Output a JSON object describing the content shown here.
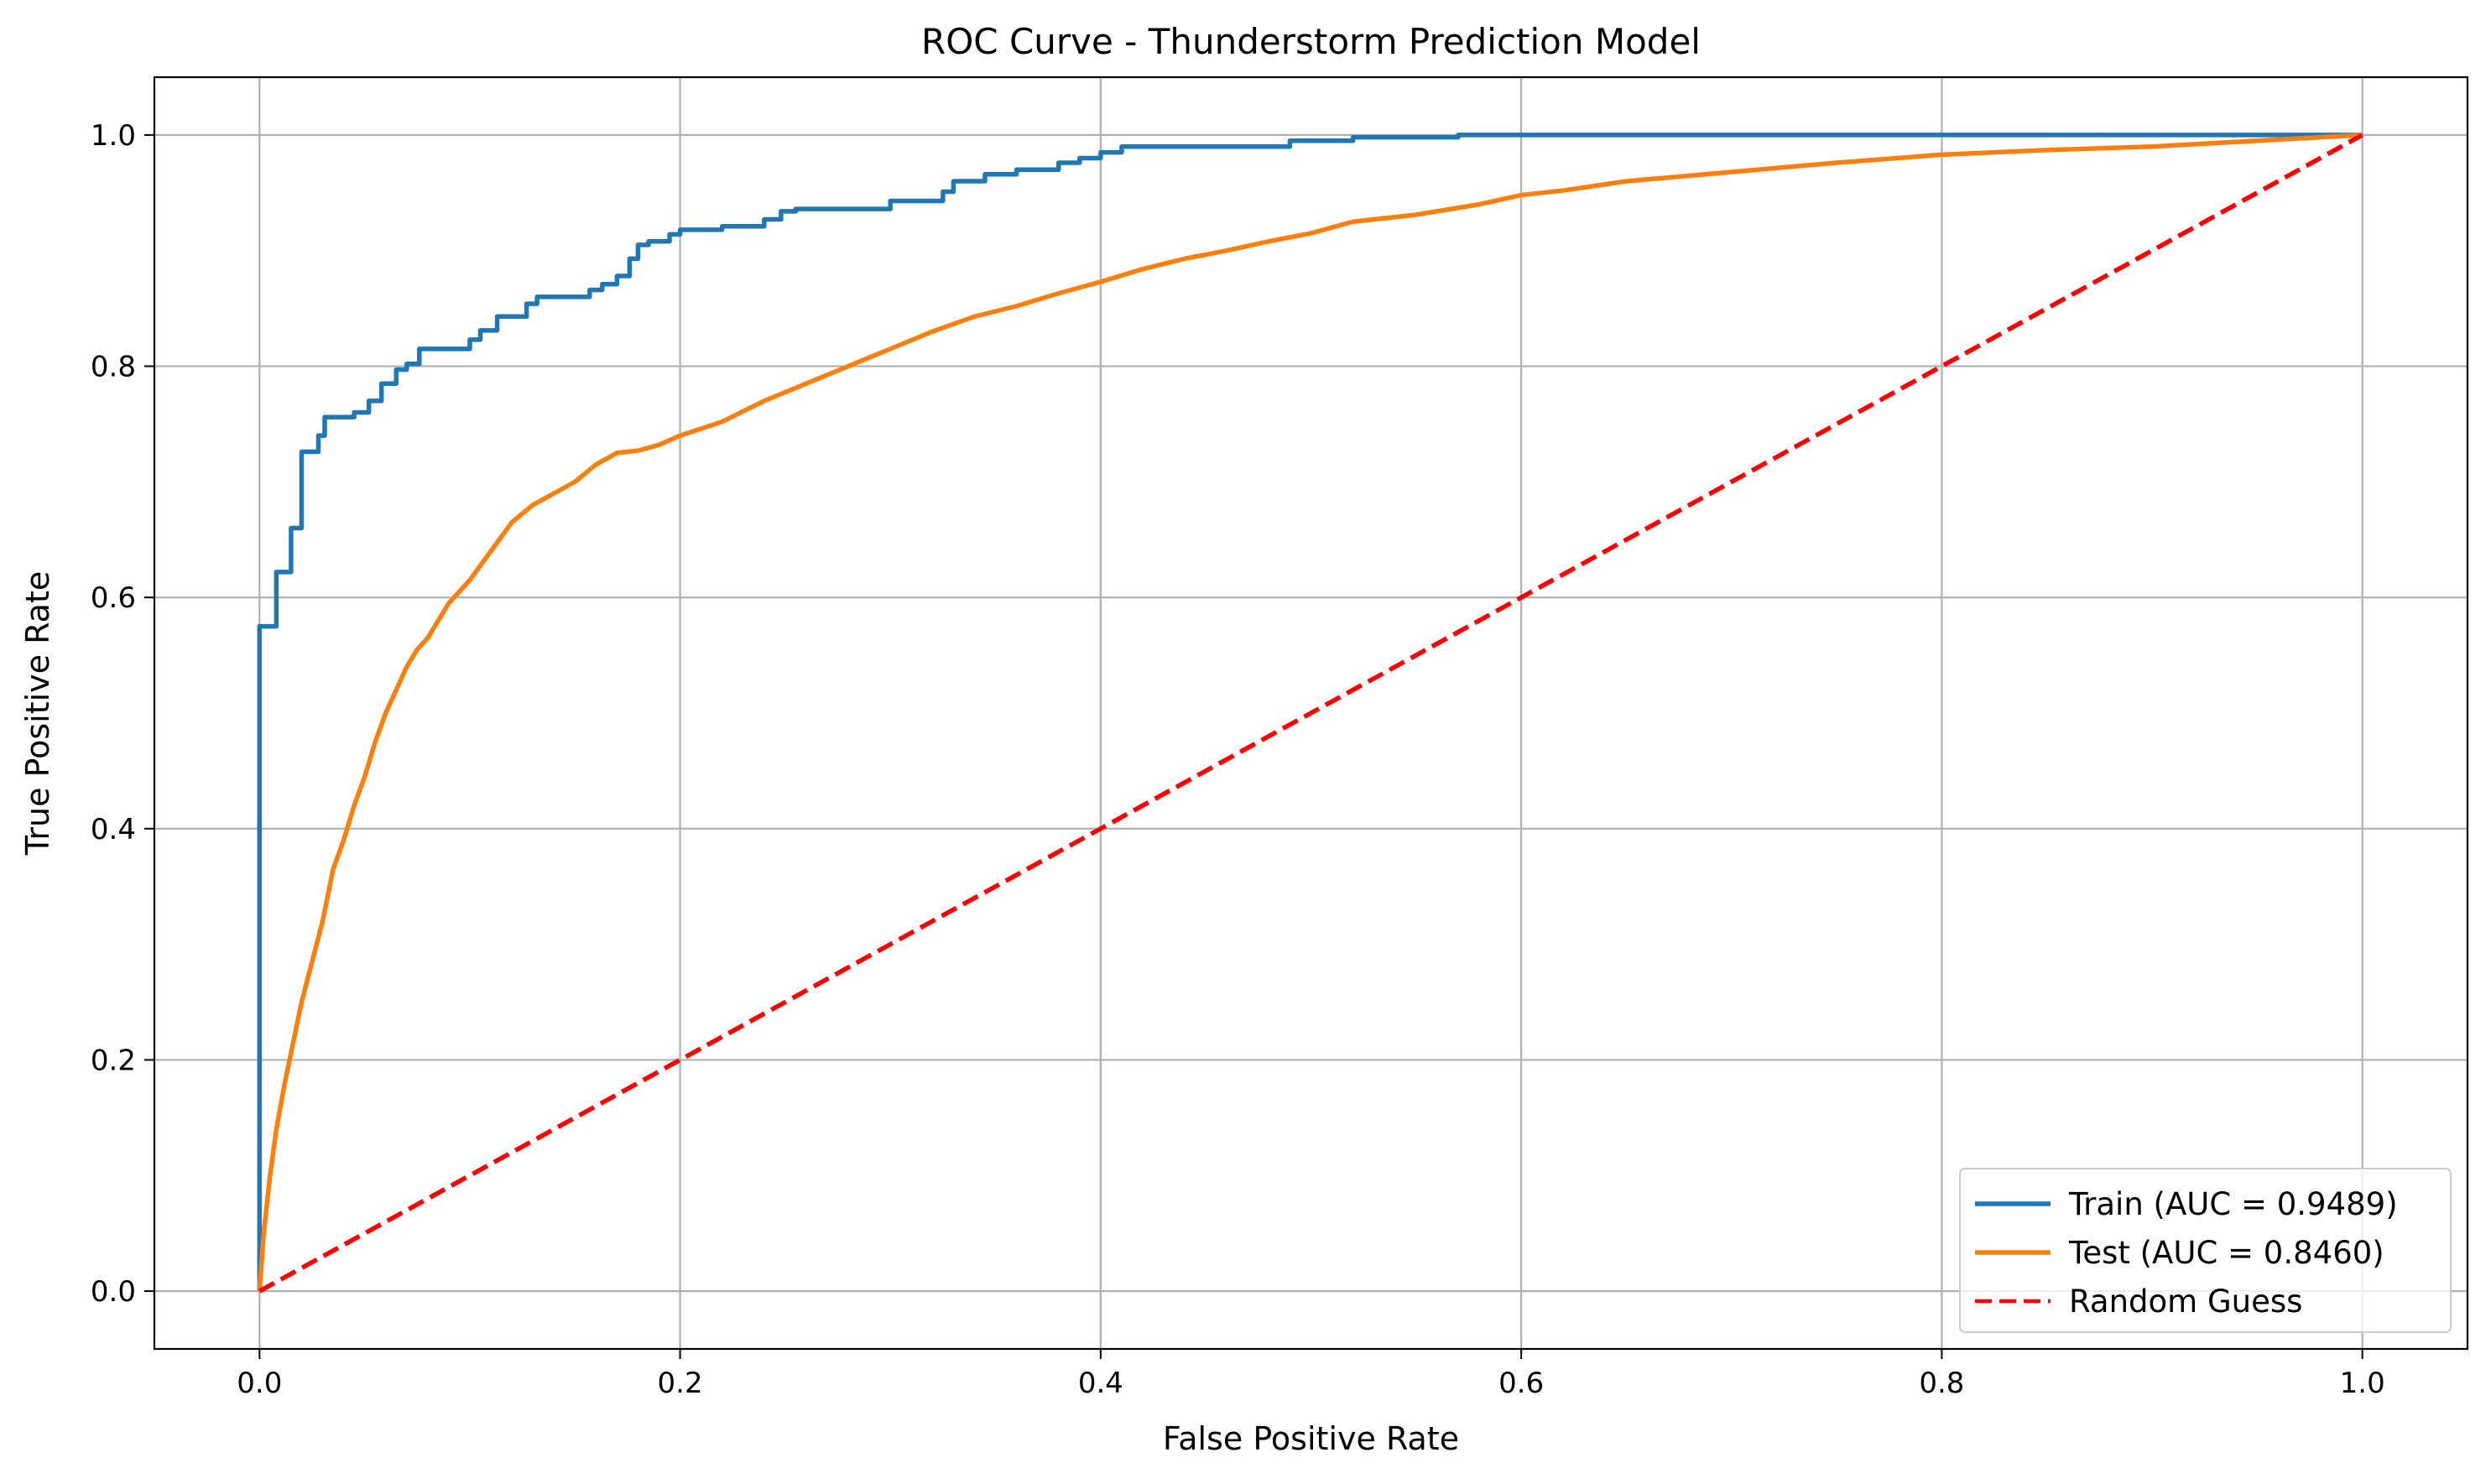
{
  "chart_data": {
    "type": "line",
    "title": "ROC Curve - Thunderstorm Prediction Model",
    "xlabel": "False Positive Rate",
    "ylabel": "True Positive Rate",
    "xlim": [
      -0.05,
      1.05
    ],
    "ylim": [
      -0.05,
      1.05
    ],
    "x_ticks": [
      0.0,
      0.2,
      0.4,
      0.6,
      0.8,
      1.0
    ],
    "x_tick_labels": [
      "0.0",
      "0.2",
      "0.4",
      "0.6",
      "0.8",
      "1.0"
    ],
    "y_ticks": [
      0.0,
      0.2,
      0.4,
      0.6,
      0.8,
      1.0
    ],
    "y_tick_labels": [
      "0.0",
      "0.2",
      "0.4",
      "0.6",
      "0.8",
      "1.0"
    ],
    "grid": true,
    "legend_position": "bottom-right",
    "series": [
      {
        "name": "Train (AUC = 0.9489)",
        "color": "#1f77b4",
        "dash": "solid",
        "x": [
          0.0,
          0.0,
          0.0,
          0.0,
          0.008,
          0.008,
          0.015,
          0.015,
          0.02,
          0.02,
          0.028,
          0.028,
          0.031,
          0.031,
          0.045,
          0.045,
          0.052,
          0.052,
          0.058,
          0.058,
          0.065,
          0.065,
          0.07,
          0.07,
          0.076,
          0.076,
          0.1,
          0.1,
          0.105,
          0.105,
          0.113,
          0.113,
          0.127,
          0.127,
          0.132,
          0.132,
          0.157,
          0.157,
          0.163,
          0.163,
          0.17,
          0.17,
          0.176,
          0.176,
          0.18,
          0.18,
          0.185,
          0.185,
          0.195,
          0.195,
          0.2,
          0.2,
          0.22,
          0.22,
          0.24,
          0.24,
          0.248,
          0.248,
          0.255,
          0.255,
          0.3,
          0.3,
          0.325,
          0.325,
          0.33,
          0.33,
          0.345,
          0.345,
          0.36,
          0.36,
          0.38,
          0.38,
          0.39,
          0.39,
          0.4,
          0.4,
          0.41,
          0.41,
          0.49,
          0.49,
          0.52,
          0.52,
          0.57,
          0.57,
          1.0
        ],
        "y": [
          0.0,
          0.1,
          0.5,
          0.575,
          0.575,
          0.622,
          0.622,
          0.66,
          0.66,
          0.726,
          0.726,
          0.74,
          0.74,
          0.756,
          0.756,
          0.76,
          0.76,
          0.77,
          0.77,
          0.785,
          0.785,
          0.797,
          0.797,
          0.802,
          0.802,
          0.815,
          0.815,
          0.823,
          0.823,
          0.831,
          0.831,
          0.843,
          0.843,
          0.854,
          0.854,
          0.86,
          0.86,
          0.866,
          0.866,
          0.871,
          0.871,
          0.878,
          0.878,
          0.893,
          0.893,
          0.905,
          0.905,
          0.908,
          0.908,
          0.914,
          0.914,
          0.918,
          0.918,
          0.921,
          0.921,
          0.927,
          0.927,
          0.934,
          0.934,
          0.936,
          0.936,
          0.943,
          0.943,
          0.951,
          0.951,
          0.96,
          0.96,
          0.966,
          0.966,
          0.97,
          0.97,
          0.976,
          0.976,
          0.98,
          0.98,
          0.985,
          0.985,
          0.99,
          0.99,
          0.995,
          0.995,
          0.998,
          0.998,
          1.0,
          1.0
        ]
      },
      {
        "name": "Test (AUC = 0.8460)",
        "color": "#ff7f0e",
        "dash": "solid",
        "x": [
          0.0,
          0.002,
          0.005,
          0.008,
          0.012,
          0.016,
          0.02,
          0.025,
          0.03,
          0.035,
          0.04,
          0.045,
          0.05,
          0.055,
          0.06,
          0.065,
          0.07,
          0.075,
          0.08,
          0.09,
          0.1,
          0.11,
          0.12,
          0.13,
          0.14,
          0.15,
          0.16,
          0.17,
          0.18,
          0.19,
          0.2,
          0.22,
          0.24,
          0.26,
          0.28,
          0.3,
          0.32,
          0.34,
          0.36,
          0.38,
          0.4,
          0.42,
          0.44,
          0.46,
          0.48,
          0.5,
          0.52,
          0.55,
          0.58,
          0.6,
          0.62,
          0.65,
          0.7,
          0.75,
          0.8,
          0.85,
          0.9,
          0.95,
          1.0
        ],
        "y": [
          0.0,
          0.05,
          0.1,
          0.14,
          0.18,
          0.215,
          0.25,
          0.285,
          0.32,
          0.365,
          0.39,
          0.42,
          0.445,
          0.475,
          0.5,
          0.52,
          0.54,
          0.555,
          0.565,
          0.595,
          0.615,
          0.64,
          0.665,
          0.68,
          0.69,
          0.7,
          0.715,
          0.725,
          0.727,
          0.732,
          0.74,
          0.752,
          0.77,
          0.785,
          0.8,
          0.815,
          0.83,
          0.843,
          0.852,
          0.863,
          0.873,
          0.884,
          0.893,
          0.9,
          0.908,
          0.915,
          0.925,
          0.931,
          0.94,
          0.948,
          0.952,
          0.96,
          0.968,
          0.976,
          0.983,
          0.987,
          0.99,
          0.995,
          1.0
        ]
      },
      {
        "name": "Random Guess",
        "color": "#ff0000",
        "dash": "dashed",
        "x": [
          0.0,
          1.0
        ],
        "y": [
          0.0,
          1.0
        ]
      }
    ]
  }
}
